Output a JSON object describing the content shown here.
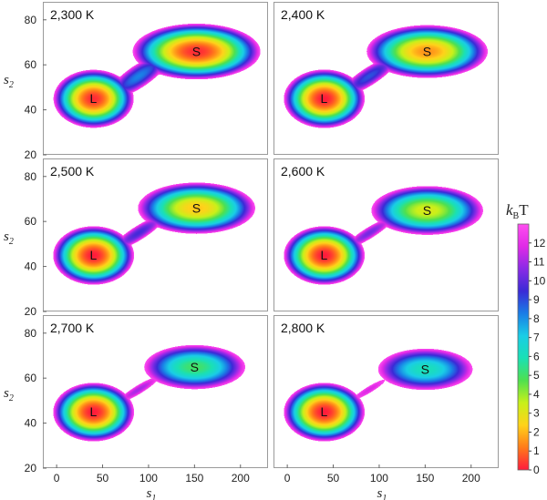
{
  "chart_data": {
    "type": "heatmap",
    "layout": "3x2 grid of free-energy landscapes",
    "xlabel_main": "s",
    "xlabel_sub": "1",
    "ylabel_main": "s",
    "ylabel_sub": "2",
    "xlim": [
      -15,
      230
    ],
    "ylim": [
      20,
      88
    ],
    "xticks": [
      0,
      50,
      100,
      150,
      200
    ],
    "yticks": [
      20,
      40,
      60,
      80
    ],
    "colorbar": {
      "label_k": "k",
      "label_sub": "B",
      "label_T": "T",
      "min": 0,
      "max": 13,
      "ticks": [
        0,
        1,
        2,
        3,
        4,
        5,
        6,
        7,
        8,
        9,
        10,
        11,
        12
      ],
      "colors": [
        "#ff1a3c",
        "#ff7a1a",
        "#ffd21a",
        "#c8f01a",
        "#4fe04f",
        "#1ae0b4",
        "#1acde6",
        "#1a7de6",
        "#3a2ad6",
        "#8a2ae6",
        "#e02ae6",
        "#ff4ff0"
      ]
    },
    "panels": [
      {
        "title": "2,300 K",
        "L": {
          "label": "L",
          "x": 40,
          "y": 45,
          "depth": 0.2
        },
        "S": {
          "label": "S",
          "x": 152,
          "y": 66,
          "depth": 0.2
        }
      },
      {
        "title": "2,400 K",
        "L": {
          "label": "L",
          "x": 40,
          "y": 45,
          "depth": 0.0
        },
        "S": {
          "label": "S",
          "x": 152,
          "y": 66,
          "depth": 1.5
        }
      },
      {
        "title": "2,500 K",
        "L": {
          "label": "L",
          "x": 40,
          "y": 45,
          "depth": 0.0
        },
        "S": {
          "label": "S",
          "x": 152,
          "y": 66,
          "depth": 2.2
        }
      },
      {
        "title": "2,600 K",
        "L": {
          "label": "L",
          "x": 40,
          "y": 45,
          "depth": 0.0
        },
        "S": {
          "label": "S",
          "x": 152,
          "y": 65,
          "depth": 3.2
        }
      },
      {
        "title": "2,700 K",
        "L": {
          "label": "L",
          "x": 40,
          "y": 45,
          "depth": 0.0
        },
        "S": {
          "label": "S",
          "x": 150,
          "y": 65,
          "depth": 5.0
        }
      },
      {
        "title": "2,800 K",
        "L": {
          "label": "L",
          "x": 40,
          "y": 45,
          "depth": 0.0
        },
        "S": {
          "label": "S",
          "x": 150,
          "y": 64,
          "depth": 6.0
        }
      }
    ]
  }
}
